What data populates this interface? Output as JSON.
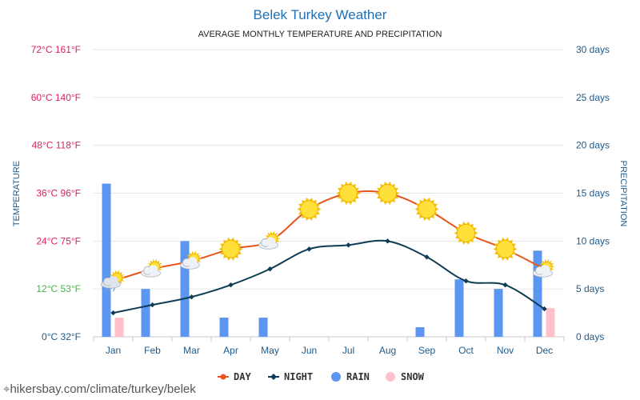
{
  "chart_data": {
    "type": "line",
    "title": "Belek Turkey Weather",
    "subtitle": "AVERAGE MONTHLY TEMPERATURE AND PRECIPITATION",
    "categories": [
      "Jan",
      "Feb",
      "Mar",
      "Apr",
      "May",
      "Jun",
      "Jul",
      "Aug",
      "Sep",
      "Oct",
      "Nov",
      "Dec"
    ],
    "ylabel_left": "TEMPERATURE",
    "ylabel_right": "PRECIPITATION",
    "temp_ticks": [
      {
        "c": 0,
        "label": "0°C 32°F",
        "color": "#1e5a8a"
      },
      {
        "c": 12,
        "label": "12°C 53°F",
        "color": "#44b54a"
      },
      {
        "c": 24,
        "label": "24°C 75°F",
        "color": "#d6245e"
      },
      {
        "c": 36,
        "label": "36°C 96°F",
        "color": "#d6245e"
      },
      {
        "c": 48,
        "label": "48°C 118°F",
        "color": "#d6245e"
      },
      {
        "c": 60,
        "label": "60°C 140°F",
        "color": "#d6245e"
      },
      {
        "c": 72,
        "label": "72°C 161°F",
        "color": "#d6245e"
      }
    ],
    "precip_ticks": [
      {
        "d": 0,
        "label": "0 days"
      },
      {
        "d": 5,
        "label": "5 days"
      },
      {
        "d": 10,
        "label": "10 days"
      },
      {
        "d": 15,
        "label": "15 days"
      },
      {
        "d": 20,
        "label": "20 days"
      },
      {
        "d": 25,
        "label": "25 days"
      },
      {
        "d": 30,
        "label": "30 days"
      }
    ],
    "temp_range": [
      0,
      72
    ],
    "precip_range": [
      0,
      30
    ],
    "series": [
      {
        "name": "DAY",
        "unit": "°C",
        "color": "#e8541c",
        "values": [
          14,
          17,
          19,
          22,
          24,
          32,
          36,
          36,
          32,
          26,
          22,
          17
        ]
      },
      {
        "name": "NIGHT",
        "unit": "°C",
        "color": "#0e3c55",
        "values": [
          6,
          8,
          10,
          13,
          17,
          22,
          23,
          24,
          20,
          14,
          13,
          7
        ]
      },
      {
        "name": "RAIN",
        "unit": "days",
        "color": "#5b96f0",
        "values": [
          16,
          5,
          10,
          2,
          2,
          0,
          0,
          0,
          1,
          6,
          5,
          9
        ]
      },
      {
        "name": "SNOW",
        "unit": "days",
        "color": "#ffbfcb",
        "values": [
          2,
          0,
          0,
          0,
          0,
          0,
          0,
          0,
          0,
          0,
          0,
          3
        ]
      }
    ],
    "weather_icons": [
      "partly-cloudy-rain",
      "partly-cloudy",
      "partly-cloudy",
      "sunny",
      "partly-cloudy",
      "sunny",
      "sunny",
      "sunny",
      "sunny",
      "sunny",
      "sunny",
      "partly-cloudy"
    ]
  },
  "legend": [
    {
      "name": "DAY",
      "marker": "line-dot",
      "color": "#e8541c"
    },
    {
      "name": "NIGHT",
      "marker": "line-diamond",
      "color": "#0e3c55"
    },
    {
      "name": "RAIN",
      "marker": "circle",
      "color": "#5b96f0"
    },
    {
      "name": "SNOW",
      "marker": "circle",
      "color": "#ffbfcb"
    }
  ],
  "footer": {
    "text": "hikersbay.com/climate/turkey/belek",
    "icon": "location-pin-icon"
  }
}
